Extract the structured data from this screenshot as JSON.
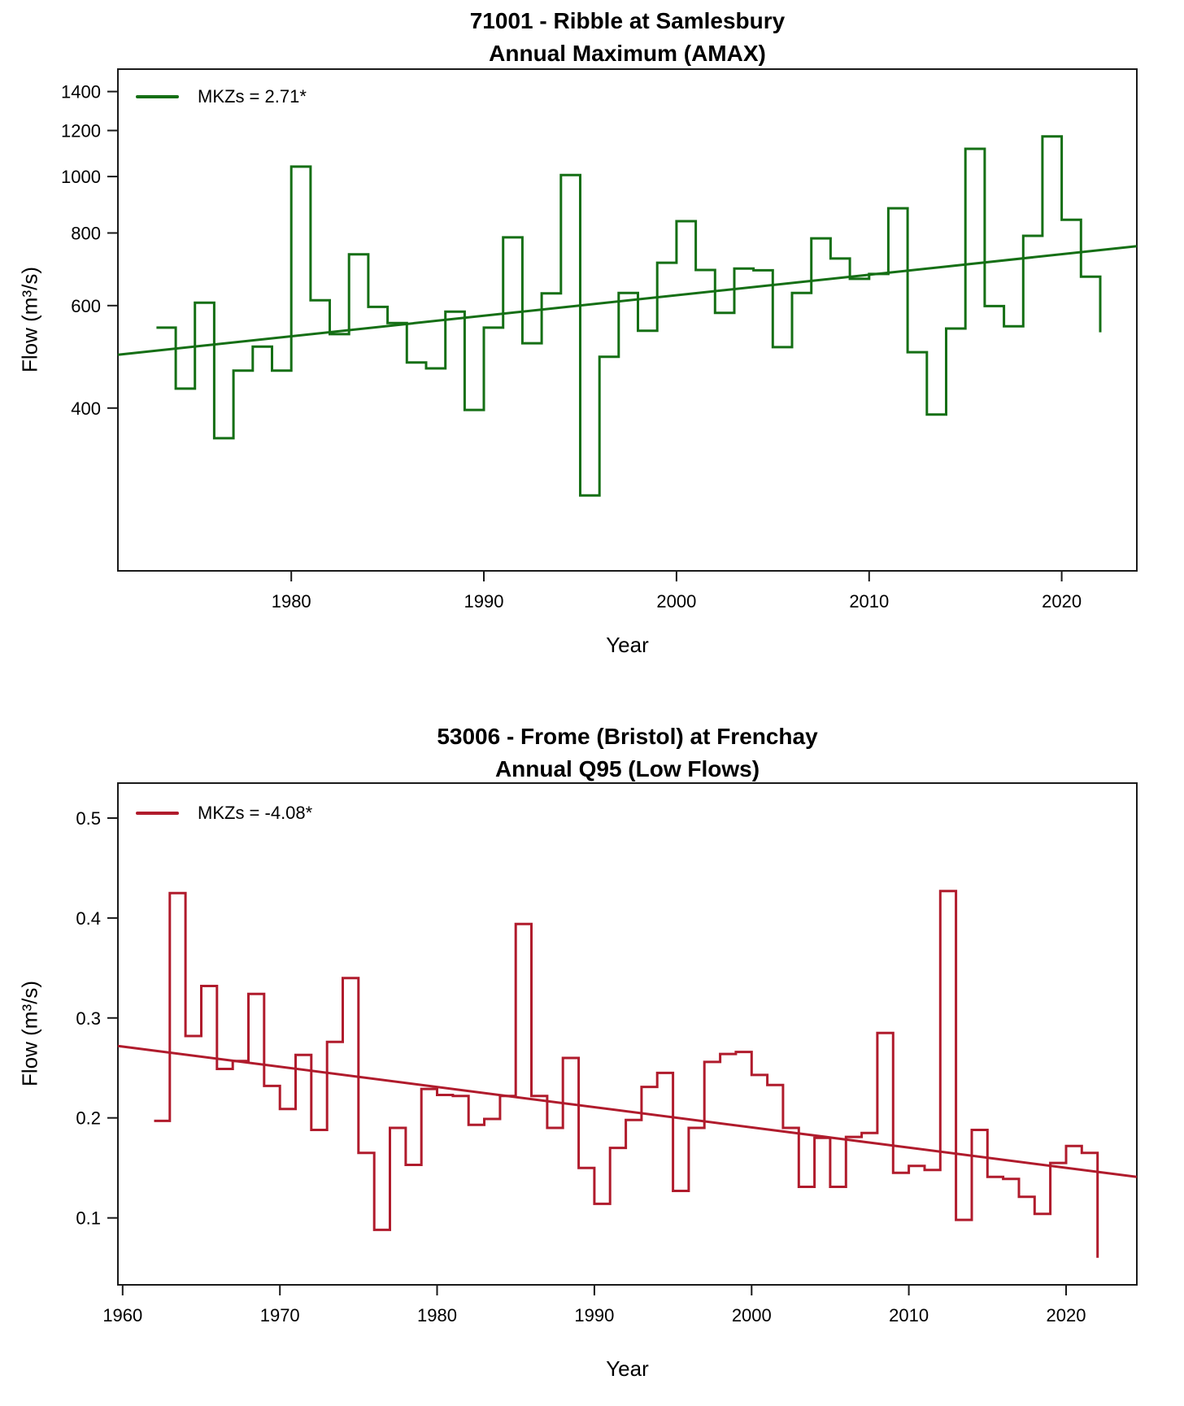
{
  "figure": {
    "background": "#ffffff",
    "axis_color": "#1a1a1a",
    "text_color": "#000000"
  },
  "chart_data": [
    {
      "type": "line",
      "subtype": "step",
      "title": "71001 - Ribble at Samlesbury",
      "subtitle": "Annual Maximum (AMAX)",
      "xlabel": "Year",
      "ylabel": "Flow (m³/s)",
      "legend": "MKZs = 2.71*",
      "legend_position": "top-left",
      "line_color": "#156f15",
      "yscale": "log",
      "grid": false,
      "xlim": [
        1971.0,
        2023.9
      ],
      "ylim": [
        210,
        1530
      ],
      "xticks": [
        1980,
        1990,
        2000,
        2010,
        2020
      ],
      "yticks": [
        400,
        600,
        800,
        1000,
        1200,
        1400
      ],
      "years": [
        1973,
        1974,
        1975,
        1976,
        1977,
        1978,
        1979,
        1980,
        1981,
        1982,
        1983,
        1984,
        1985,
        1986,
        1987,
        1988,
        1989,
        1990,
        1991,
        1992,
        1993,
        1994,
        1995,
        1996,
        1997,
        1998,
        1999,
        2000,
        2001,
        2002,
        2003,
        2004,
        2005,
        2006,
        2007,
        2008,
        2009,
        2010,
        2011,
        2012,
        2013,
        2014,
        2015,
        2016,
        2017,
        2018,
        2019,
        2020,
        2021,
        2022
      ],
      "values": [
        550,
        432,
        607,
        355,
        464,
        510,
        464,
        1040,
        613,
        536,
        735,
        597,
        560,
        479,
        468,
        586,
        397,
        550,
        786,
        517,
        630,
        1006,
        283,
        490,
        631,
        543,
        711,
        838,
        691,
        583,
        695,
        690,
        509,
        631,
        783,
        723,
        667,
        680,
        882,
        499,
        390,
        548,
        1116,
        599,
        553,
        791,
        1172,
        843,
        673,
        540
      ],
      "trend": {
        "x": [
          1971.0,
          2023.9
        ],
        "v": [
          494,
          759
        ]
      }
    },
    {
      "type": "line",
      "subtype": "step",
      "title": "53006 - Frome (Bristol) at Frenchay",
      "subtitle": "Annual Q95 (Low Flows)",
      "xlabel": "Year",
      "ylabel": "Flow (m³/s)",
      "legend": "MKZs = -4.08*",
      "legend_position": "top-left",
      "line_color": "#b01b2c",
      "yscale": "linear",
      "grid": false,
      "xlim": [
        1959.7,
        2024.5
      ],
      "ylim": [
        0.033,
        0.535
      ],
      "xticks": [
        1960,
        1970,
        1980,
        1990,
        2000,
        2010,
        2020
      ],
      "yticks": [
        0.1,
        0.2,
        0.3,
        0.4,
        0.5
      ],
      "years": [
        1962,
        1963,
        1964,
        1965,
        1966,
        1967,
        1968,
        1969,
        1970,
        1971,
        1972,
        1973,
        1974,
        1975,
        1976,
        1977,
        1978,
        1979,
        1980,
        1981,
        1982,
        1983,
        1984,
        1985,
        1986,
        1987,
        1988,
        1989,
        1990,
        1991,
        1992,
        1993,
        1994,
        1995,
        1996,
        1997,
        1998,
        1999,
        2000,
        2001,
        2002,
        2003,
        2004,
        2005,
        2006,
        2007,
        2008,
        2009,
        2010,
        2011,
        2012,
        2013,
        2014,
        2015,
        2016,
        2017,
        2018,
        2019,
        2020,
        2021,
        2022
      ],
      "values": [
        0.197,
        0.425,
        0.282,
        0.332,
        0.249,
        0.257,
        0.324,
        0.232,
        0.209,
        0.263,
        0.188,
        0.276,
        0.34,
        0.165,
        0.088,
        0.19,
        0.153,
        0.229,
        0.223,
        0.222,
        0.193,
        0.199,
        0.222,
        0.394,
        0.222,
        0.19,
        0.26,
        0.15,
        0.114,
        0.17,
        0.198,
        0.231,
        0.245,
        0.127,
        0.19,
        0.256,
        0.264,
        0.266,
        0.243,
        0.233,
        0.19,
        0.131,
        0.18,
        0.131,
        0.181,
        0.185,
        0.285,
        0.145,
        0.152,
        0.148,
        0.427,
        0.098,
        0.188,
        0.141,
        0.139,
        0.121,
        0.104,
        0.155,
        0.172,
        0.165,
        0.06
      ],
      "trend": {
        "x": [
          1959.7,
          2024.5
        ],
        "v": [
          0.272,
          0.141
        ]
      }
    }
  ]
}
